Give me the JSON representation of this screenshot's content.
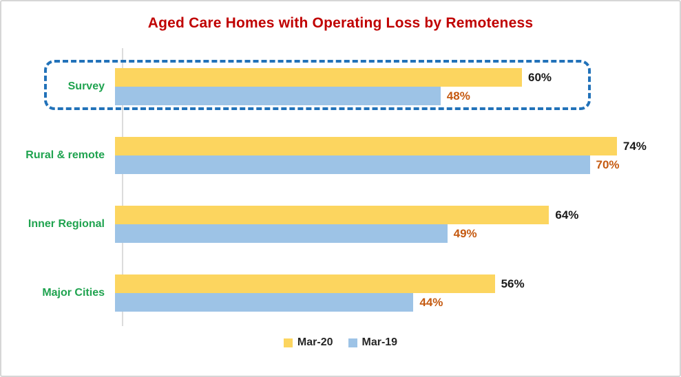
{
  "chart_data": {
    "type": "bar",
    "orientation": "horizontal",
    "title": "Aged Care Homes with Operating Loss by Remoteness",
    "categories": [
      "Survey",
      "Rural & remote",
      "Inner Regional",
      "Major Cities"
    ],
    "series": [
      {
        "name": "Mar-20",
        "color": "#fcd55f",
        "label_color": "#1a1a1a",
        "values": [
          60,
          74,
          64,
          56
        ]
      },
      {
        "name": "Mar-19",
        "color": "#9dc3e6",
        "label_color": "#c55a11",
        "values": [
          48,
          70,
          49,
          44
        ]
      }
    ],
    "value_suffix": "%",
    "xlim": [
      0,
      80
    ],
    "grid": false,
    "legend_position": "bottom",
    "highlight": {
      "category": "Survey",
      "style": "dashed-outline",
      "color": "#2272b9"
    }
  },
  "colors": {
    "title": "#c00000",
    "category_label": "#1fa34f",
    "axis_line": "#dcdcdc",
    "frame_border": "#d6d6d6",
    "background": "#ffffff"
  }
}
